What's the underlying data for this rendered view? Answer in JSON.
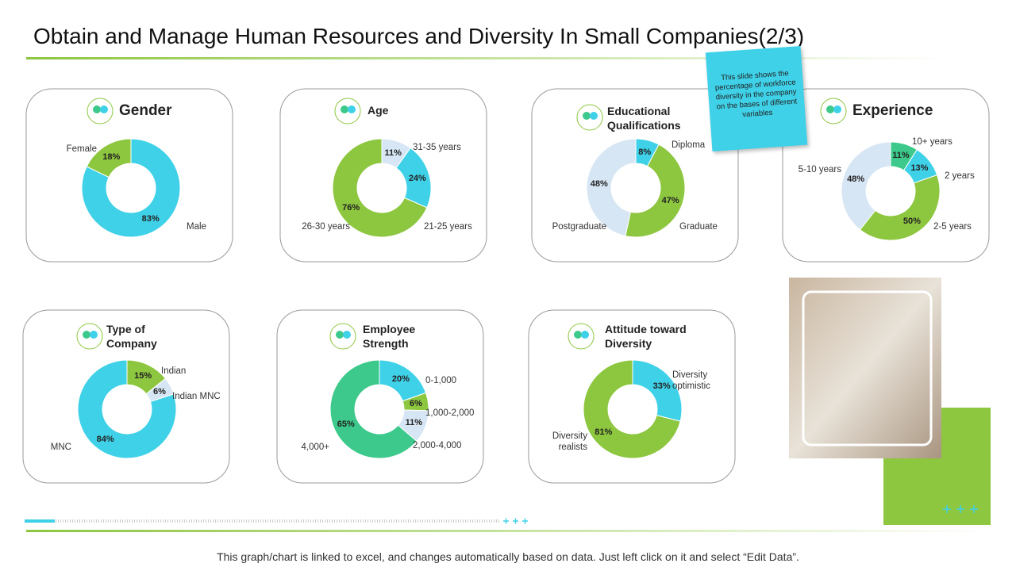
{
  "title": "Obtain and Manage Human Resources and Diversity In Small  Companies(2/3)",
  "note": "This slide shows the percentage of workforce diversity in the company on the bases of different variables",
  "footer": "This graph/chart is linked to excel, and changes automatically based on data. Just left click on it and select “Edit Data”.",
  "chart_data": [
    {
      "type": "donut",
      "title": "Gender",
      "categories": [
        "Male",
        "Female"
      ],
      "values": [
        83,
        18
      ],
      "value_labels": [
        "83%",
        "18%"
      ],
      "colors": [
        "#3fd1e8",
        "#8dc63f"
      ]
    },
    {
      "type": "donut",
      "title": "Age",
      "categories": [
        "31-35 years",
        "21-25 years",
        "26-30 years"
      ],
      "values": [
        11,
        24,
        76
      ],
      "value_labels": [
        "11%",
        "24%",
        "76%"
      ],
      "colors": [
        "#d6e6f4",
        "#3fd1e8",
        "#8dc63f"
      ]
    },
    {
      "type": "donut",
      "title": "Educational Qualifications",
      "categories": [
        "Diploma",
        "Graduate",
        "Postgraduate"
      ],
      "values": [
        8,
        47,
        48
      ],
      "value_labels": [
        "8%",
        "47%",
        "48%"
      ],
      "colors": [
        "#3fd1e8",
        "#8dc63f",
        "#d6e6f4"
      ]
    },
    {
      "type": "donut",
      "title": "Experience",
      "categories": [
        "10+ years",
        "2 years",
        "2-5 years",
        "5-10 years"
      ],
      "values": [
        11,
        13,
        50,
        48
      ],
      "value_labels": [
        "11%",
        "13%",
        "50%",
        "48%"
      ],
      "colors": [
        "#3cc98b",
        "#3fd1e8",
        "#8dc63f",
        "#d6e6f4"
      ]
    },
    {
      "type": "donut",
      "title": "Type of Company",
      "categories": [
        "Indian",
        "Indian MNC",
        "MNC"
      ],
      "values": [
        15,
        6,
        84
      ],
      "value_labels": [
        "15%",
        "6%",
        "84%"
      ],
      "colors": [
        "#8dc63f",
        "#d6e6f4",
        "#3fd1e8"
      ]
    },
    {
      "type": "donut",
      "title": "Employee Strength",
      "categories": [
        "0-1,000",
        "1,000-2,000",
        "2,000-4,000",
        "4,000+"
      ],
      "values": [
        20,
        6,
        11,
        65
      ],
      "value_labels": [
        "20%",
        "6%",
        "11%",
        "65%"
      ],
      "colors": [
        "#3fd1e8",
        "#8dc63f",
        "#d6e6f4",
        "#3cc98b"
      ]
    },
    {
      "type": "donut",
      "title": "Attitude toward Diversity",
      "categories": [
        "Diversity optimistic",
        "Diversity realists"
      ],
      "values": [
        33,
        81
      ],
      "value_labels": [
        "33%",
        "81%"
      ],
      "colors": [
        "#3fd1e8",
        "#8dc63f"
      ]
    }
  ]
}
